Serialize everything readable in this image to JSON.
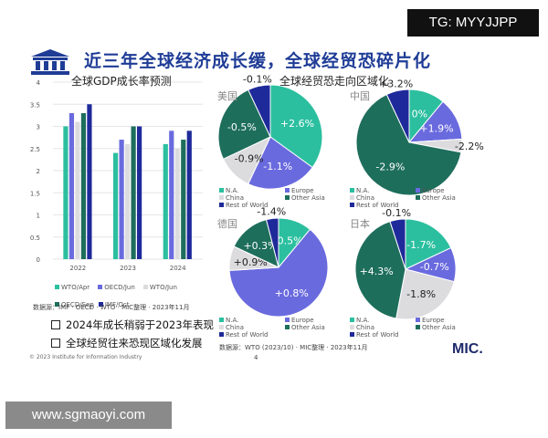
{
  "watermark_top": "TG: MYYJJPP",
  "watermark_bottom": "www.sgmaoyi.com",
  "slide_title": "近三年全球经济成长缓，全球经贸恐碎片化",
  "colors": {
    "title": "#1f3c96",
    "na": "#2bbf9f",
    "europe": "#6a6adf",
    "china": "#dcdcdf",
    "other_asia": "#1e6e5c",
    "rest": "#1f2a9a"
  },
  "chart_data": [
    {
      "type": "bar",
      "title": "全球GDP成长率预测",
      "categories": [
        "2022",
        "2023",
        "2024"
      ],
      "ylim": [
        0,
        4
      ],
      "yticks": [
        "0",
        "0.5",
        "1",
        "1.5",
        "2",
        "2.5",
        "3",
        "3.5",
        "4"
      ],
      "legend_position": "bottom",
      "series": [
        {
          "name": "WTO/Apr",
          "values": [
            3.0,
            2.4,
            2.6
          ]
        },
        {
          "name": "OECD/Jun",
          "values": [
            3.3,
            2.7,
            2.9
          ]
        },
        {
          "name": "WTO/Jun",
          "values": [
            3.1,
            2.6,
            2.5
          ]
        },
        {
          "name": "OECD/Sep",
          "values": [
            3.3,
            3.0,
            2.7
          ]
        },
        {
          "name": "IMF/Oct",
          "values": [
            3.5,
            3.0,
            2.9
          ]
        }
      ]
    },
    {
      "type": "pie",
      "title": "全球经贸恐走向区域化",
      "legend": [
        "N.A.",
        "Europe",
        "China",
        "Other Asia",
        "Rest of World"
      ],
      "pies": [
        {
          "name": "美国",
          "shares": [
            0.35,
            0.22,
            0.11,
            0.25,
            0.07
          ],
          "labels": [
            "+2.6%",
            "-1.1%",
            "-0.9%",
            "-0.5%",
            "-0.1%"
          ]
        },
        {
          "name": "中国",
          "shares": [
            0.11,
            0.13,
            0.04,
            0.65,
            0.07
          ],
          "labels": [
            "0%",
            "+1.9%",
            "-2.2%",
            "-2.9%",
            "+3.2%"
          ]
        },
        {
          "name": "德国",
          "shares": [
            0.11,
            0.63,
            0.08,
            0.14,
            0.04
          ],
          "labels": [
            "-0.5%",
            "+0.8%",
            "+0.9%",
            "+0.3%",
            "-1.4%"
          ]
        },
        {
          "name": "日本",
          "shares": [
            0.18,
            0.11,
            0.24,
            0.42,
            0.05
          ],
          "labels": [
            "-1.7%",
            "-0.7%",
            "-1.8%",
            "+4.3%",
            "-0.1%"
          ]
        }
      ]
    }
  ],
  "source_left": "数据源：IMF · OECD · WTO · MIC整理 · 2023年11月",
  "source_right": "数据源：WTO (2023/10) · MIC整理 · 2023年11月",
  "bullets": [
    "2024年成长稍弱于2023年表现",
    "全球经贸往来恐现区域化发展"
  ],
  "copyright": "© 2023 Institute for Information Industry",
  "page_number": "4",
  "logo": "MIC."
}
